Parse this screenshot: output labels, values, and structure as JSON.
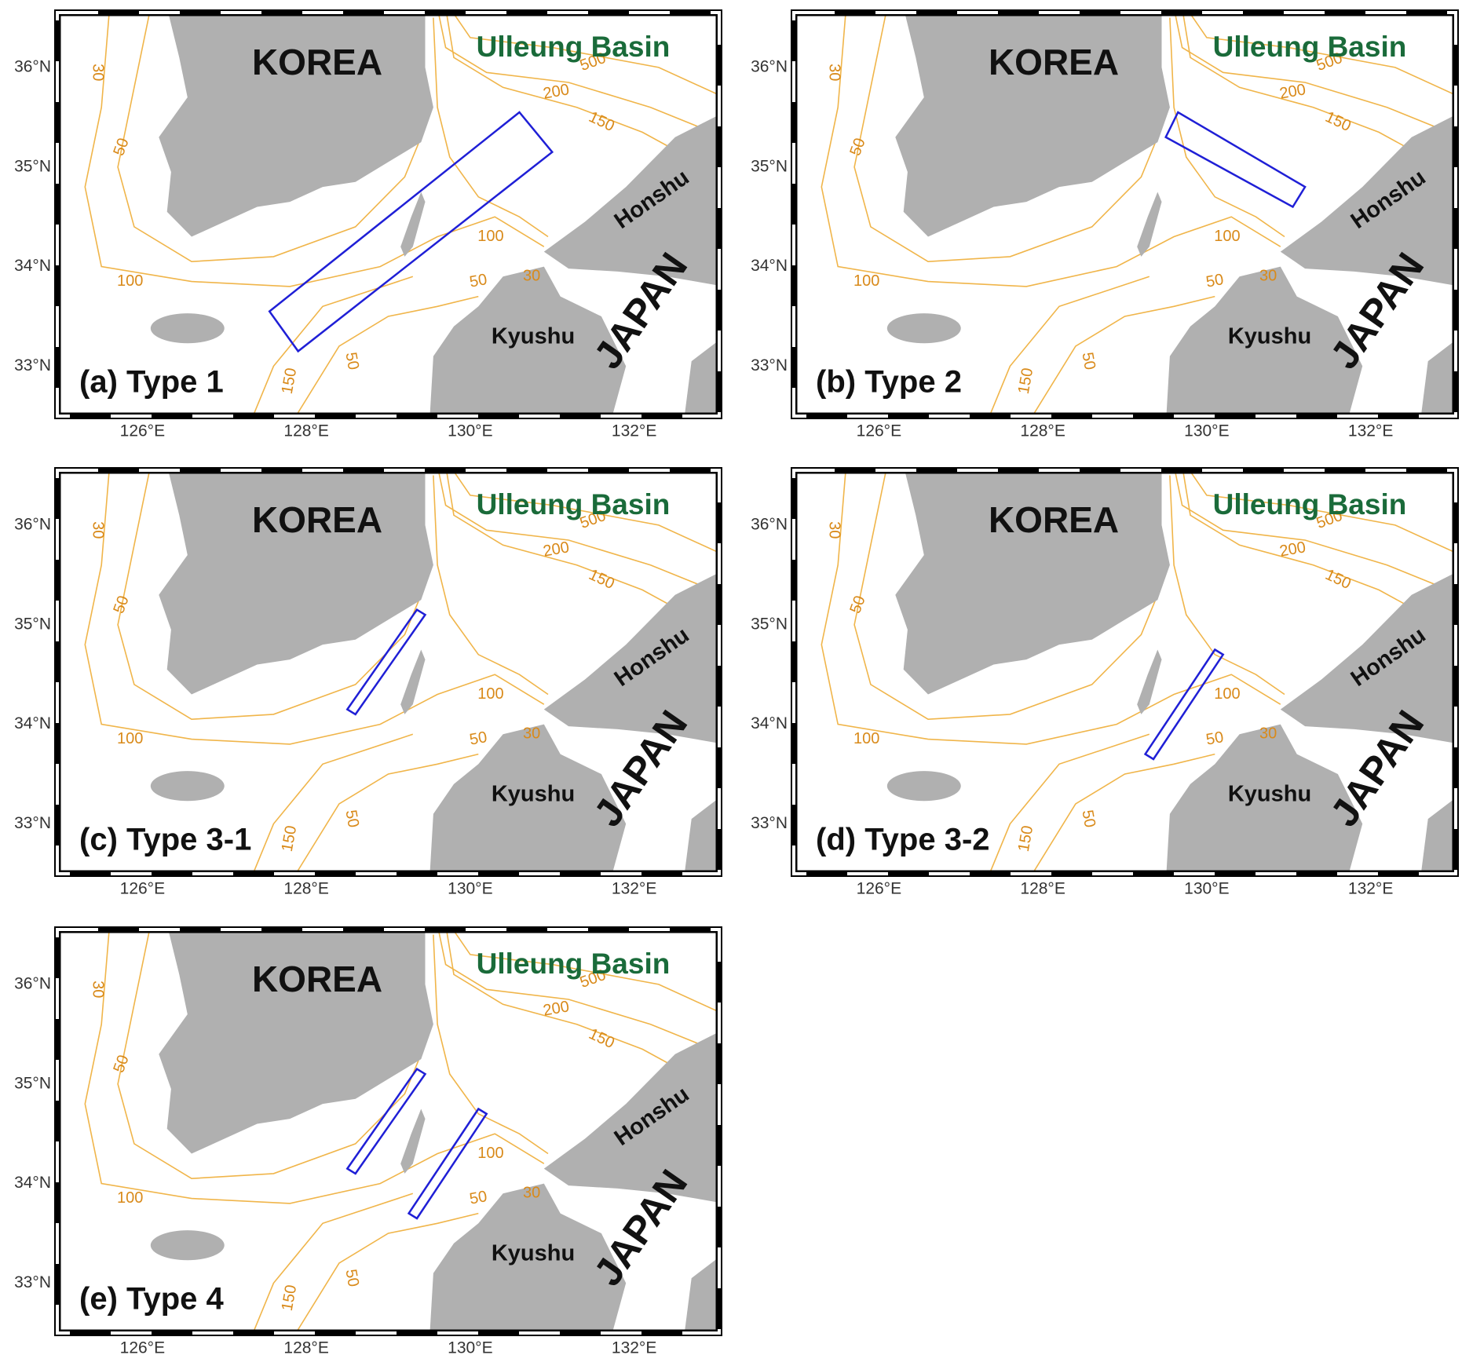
{
  "panels": [
    {
      "label": "(a) Type 1"
    },
    {
      "label": "(b) Type 2"
    },
    {
      "label": "(c) Type 3-1"
    },
    {
      "label": "(d) Type 3-2"
    },
    {
      "label": "(e) Type 4"
    }
  ],
  "place_labels": {
    "korea": "KOREA",
    "japan": "JAPAN",
    "ulleung": "Ulleung Basin",
    "honshu": "Honshu",
    "kyushu": "Kyushu"
  },
  "x_ticks": [
    {
      "value": 126,
      "label": "126°E"
    },
    {
      "value": 128,
      "label": "128°E"
    },
    {
      "value": 130,
      "label": "130°E"
    },
    {
      "value": 132,
      "label": "132°E"
    }
  ],
  "y_ticks": [
    {
      "value": 33,
      "label": "33°N"
    },
    {
      "value": 34,
      "label": "34°N"
    },
    {
      "value": 35,
      "label": "35°N"
    },
    {
      "value": 36,
      "label": "36°N"
    }
  ],
  "contour_labels": [
    "30",
    "50",
    "100",
    "150",
    "200",
    "500"
  ]
}
